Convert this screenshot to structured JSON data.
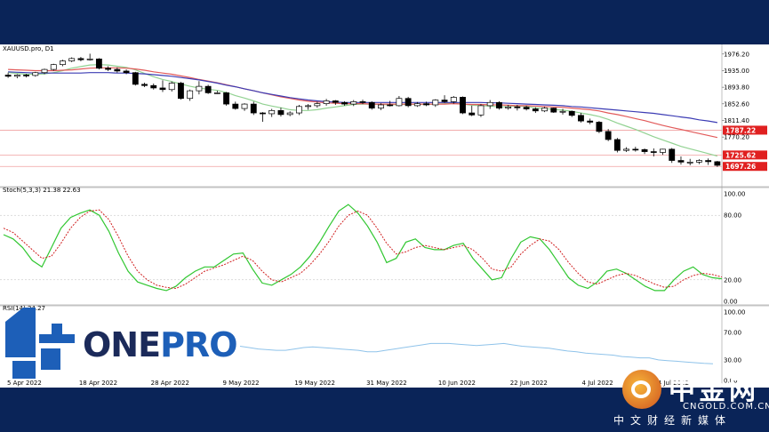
{
  "instrument_label": "XAUUSD.pro, D1",
  "stoch_label": "Stoch(5,3,3) 21.38 22.63",
  "rsi_label": "RSI(14) 24.27",
  "logo": {
    "name_part1": "ONE",
    "name_part2": "PRO"
  },
  "watermark": {
    "brand": "中金网",
    "url": "CNGOLD.COM.CN",
    "slogan": "中文财经新媒体"
  },
  "colors": {
    "up_candle": "#ffffff",
    "down_candle": "#000000",
    "ma_fast": "#92d292",
    "ma_mid": "#e25a5a",
    "ma_slow": "#3c3cb4",
    "stoch_main": "#31c731",
    "stoch_signal": "#d02020",
    "rsi_line": "#8fc3ea",
    "level_line": "#f1a0a0",
    "level_badge": "#e02020",
    "onepro_blue": "#1d5fb8",
    "frame": "#0a2458"
  },
  "chart_data": [
    {
      "type": "candlestick",
      "panel": "main",
      "title": "XAUUSD.pro, D1",
      "ylim": [
        1647,
        2000
      ],
      "y_ticks": [
        "1976.20",
        "1935.00",
        "1893.80",
        "1852.60",
        "1811.40",
        "1770.20"
      ],
      "level_labels": [
        "1787.22",
        "1725.62",
        "1697.26"
      ],
      "x_tick_labels": [
        "5 Apr 2022",
        "18 Apr 2022",
        "28 Apr 2022",
        "9 May 2022",
        "19 May 2022",
        "31 May 2022",
        "10 Jun 2022",
        "22 Jun 2022",
        "4 Jul 2022",
        "14 Jul 2022"
      ],
      "candles": [
        {
          "o": 1924,
          "h": 1930,
          "l": 1917,
          "c": 1921
        },
        {
          "o": 1921,
          "h": 1926,
          "l": 1916,
          "c": 1924
        },
        {
          "o": 1924,
          "h": 1927,
          "l": 1918,
          "c": 1923
        },
        {
          "o": 1923,
          "h": 1932,
          "l": 1920,
          "c": 1930
        },
        {
          "o": 1930,
          "h": 1940,
          "l": 1926,
          "c": 1938
        },
        {
          "o": 1938,
          "h": 1952,
          "l": 1935,
          "c": 1950
        },
        {
          "o": 1950,
          "h": 1962,
          "l": 1946,
          "c": 1959
        },
        {
          "o": 1959,
          "h": 1968,
          "l": 1956,
          "c": 1965
        },
        {
          "o": 1965,
          "h": 1969,
          "l": 1958,
          "c": 1962
        },
        {
          "o": 1962,
          "h": 1977,
          "l": 1960,
          "c": 1964
        },
        {
          "o": 1964,
          "h": 1966,
          "l": 1938,
          "c": 1941
        },
        {
          "o": 1941,
          "h": 1946,
          "l": 1934,
          "c": 1938
        },
        {
          "o": 1938,
          "h": 1943,
          "l": 1930,
          "c": 1934
        },
        {
          "o": 1934,
          "h": 1938,
          "l": 1926,
          "c": 1930
        },
        {
          "o": 1930,
          "h": 1932,
          "l": 1898,
          "c": 1901
        },
        {
          "o": 1901,
          "h": 1905,
          "l": 1894,
          "c": 1898
        },
        {
          "o": 1898,
          "h": 1903,
          "l": 1888,
          "c": 1892
        },
        {
          "o": 1892,
          "h": 1911,
          "l": 1882,
          "c": 1888
        },
        {
          "o": 1888,
          "h": 1908,
          "l": 1883,
          "c": 1904
        },
        {
          "o": 1904,
          "h": 1907,
          "l": 1863,
          "c": 1866
        },
        {
          "o": 1866,
          "h": 1888,
          "l": 1860,
          "c": 1885
        },
        {
          "o": 1885,
          "h": 1909,
          "l": 1876,
          "c": 1896
        },
        {
          "o": 1896,
          "h": 1900,
          "l": 1877,
          "c": 1880
        },
        {
          "o": 1880,
          "h": 1885,
          "l": 1877,
          "c": 1880
        },
        {
          "o": 1880,
          "h": 1882,
          "l": 1848,
          "c": 1852
        },
        {
          "o": 1852,
          "h": 1858,
          "l": 1838,
          "c": 1841
        },
        {
          "o": 1841,
          "h": 1854,
          "l": 1835,
          "c": 1852
        },
        {
          "o": 1852,
          "h": 1858,
          "l": 1825,
          "c": 1830
        },
        {
          "o": 1830,
          "h": 1832,
          "l": 1808,
          "c": 1828
        },
        {
          "o": 1828,
          "h": 1840,
          "l": 1820,
          "c": 1836
        },
        {
          "o": 1836,
          "h": 1843,
          "l": 1821,
          "c": 1826
        },
        {
          "o": 1826,
          "h": 1834,
          "l": 1822,
          "c": 1830
        },
        {
          "o": 1830,
          "h": 1850,
          "l": 1825,
          "c": 1846
        },
        {
          "o": 1846,
          "h": 1852,
          "l": 1838,
          "c": 1848
        },
        {
          "o": 1848,
          "h": 1858,
          "l": 1843,
          "c": 1853
        },
        {
          "o": 1853,
          "h": 1865,
          "l": 1848,
          "c": 1860
        },
        {
          "o": 1860,
          "h": 1862,
          "l": 1850,
          "c": 1856
        },
        {
          "o": 1856,
          "h": 1859,
          "l": 1848,
          "c": 1852
        },
        {
          "o": 1852,
          "h": 1862,
          "l": 1847,
          "c": 1858
        },
        {
          "o": 1858,
          "h": 1863,
          "l": 1852,
          "c": 1856
        },
        {
          "o": 1856,
          "h": 1859,
          "l": 1838,
          "c": 1842
        },
        {
          "o": 1842,
          "h": 1854,
          "l": 1837,
          "c": 1850
        },
        {
          "o": 1850,
          "h": 1860,
          "l": 1846,
          "c": 1848
        },
        {
          "o": 1848,
          "h": 1872,
          "l": 1846,
          "c": 1866
        },
        {
          "o": 1866,
          "h": 1870,
          "l": 1844,
          "c": 1848
        },
        {
          "o": 1848,
          "h": 1857,
          "l": 1845,
          "c": 1853
        },
        {
          "o": 1853,
          "h": 1858,
          "l": 1847,
          "c": 1850
        },
        {
          "o": 1850,
          "h": 1864,
          "l": 1845,
          "c": 1862
        },
        {
          "o": 1862,
          "h": 1874,
          "l": 1855,
          "c": 1858
        },
        {
          "o": 1858,
          "h": 1872,
          "l": 1853,
          "c": 1869
        },
        {
          "o": 1869,
          "h": 1871,
          "l": 1827,
          "c": 1830
        },
        {
          "o": 1830,
          "h": 1848,
          "l": 1822,
          "c": 1825
        },
        {
          "o": 1825,
          "h": 1852,
          "l": 1820,
          "c": 1848
        },
        {
          "o": 1848,
          "h": 1862,
          "l": 1840,
          "c": 1856
        },
        {
          "o": 1856,
          "h": 1859,
          "l": 1838,
          "c": 1842
        },
        {
          "o": 1842,
          "h": 1850,
          "l": 1838,
          "c": 1845
        },
        {
          "o": 1845,
          "h": 1850,
          "l": 1836,
          "c": 1844
        },
        {
          "o": 1844,
          "h": 1848,
          "l": 1836,
          "c": 1840
        },
        {
          "o": 1840,
          "h": 1844,
          "l": 1830,
          "c": 1835
        },
        {
          "o": 1835,
          "h": 1845,
          "l": 1832,
          "c": 1842
        },
        {
          "o": 1842,
          "h": 1843,
          "l": 1830,
          "c": 1832
        },
        {
          "o": 1832,
          "h": 1840,
          "l": 1826,
          "c": 1834
        },
        {
          "o": 1834,
          "h": 1836,
          "l": 1820,
          "c": 1824
        },
        {
          "o": 1824,
          "h": 1830,
          "l": 1806,
          "c": 1810
        },
        {
          "o": 1810,
          "h": 1816,
          "l": 1802,
          "c": 1807
        },
        {
          "o": 1807,
          "h": 1810,
          "l": 1780,
          "c": 1784
        },
        {
          "o": 1784,
          "h": 1790,
          "l": 1760,
          "c": 1764
        },
        {
          "o": 1764,
          "h": 1768,
          "l": 1732,
          "c": 1737
        },
        {
          "o": 1737,
          "h": 1745,
          "l": 1733,
          "c": 1740
        },
        {
          "o": 1740,
          "h": 1746,
          "l": 1734,
          "c": 1739
        },
        {
          "o": 1739,
          "h": 1742,
          "l": 1728,
          "c": 1734
        },
        {
          "o": 1734,
          "h": 1742,
          "l": 1722,
          "c": 1732
        },
        {
          "o": 1732,
          "h": 1741,
          "l": 1726,
          "c": 1740
        },
        {
          "o": 1740,
          "h": 1743,
          "l": 1706,
          "c": 1712
        },
        {
          "o": 1712,
          "h": 1722,
          "l": 1702,
          "c": 1708
        },
        {
          "o": 1708,
          "h": 1716,
          "l": 1700,
          "c": 1708
        },
        {
          "o": 1708,
          "h": 1715,
          "l": 1703,
          "c": 1712
        },
        {
          "o": 1712,
          "h": 1717,
          "l": 1701,
          "c": 1709
        },
        {
          "o": 1709,
          "h": 1711,
          "l": 1696,
          "c": 1700
        }
      ],
      "ma_fast": [
        1930,
        1928,
        1926,
        1926,
        1927,
        1930,
        1935,
        1941,
        1945,
        1949,
        1950,
        1949,
        1946,
        1943,
        1937,
        1928,
        1920,
        1913,
        1908,
        1902,
        1896,
        1892,
        1889,
        1886,
        1881,
        1873,
        1867,
        1860,
        1852,
        1847,
        1843,
        1838,
        1836,
        1836,
        1838,
        1842,
        1845,
        1848,
        1851,
        1852,
        1852,
        1851,
        1850,
        1851,
        1851,
        1851,
        1851,
        1852,
        1853,
        1855,
        1852,
        1849,
        1848,
        1847,
        1845,
        1846,
        1847,
        1846,
        1843,
        1841,
        1839,
        1837,
        1834,
        1830,
        1826,
        1821,
        1814,
        1805,
        1797,
        1789,
        1780,
        1771,
        1763,
        1755,
        1747,
        1741,
        1735,
        1729,
        1723
      ],
      "ma_mid": [
        1938,
        1937,
        1936,
        1935,
        1935,
        1935,
        1936,
        1937,
        1939,
        1941,
        1942,
        1942,
        1942,
        1941,
        1939,
        1936,
        1932,
        1929,
        1926,
        1922,
        1918,
        1913,
        1909,
        1905,
        1900,
        1895,
        1890,
        1885,
        1880,
        1875,
        1870,
        1866,
        1862,
        1859,
        1857,
        1855,
        1854,
        1853,
        1853,
        1853,
        1852,
        1852,
        1852,
        1852,
        1852,
        1852,
        1852,
        1852,
        1852,
        1853,
        1852,
        1851,
        1851,
        1850,
        1850,
        1849,
        1848,
        1848,
        1847,
        1846,
        1845,
        1844,
        1842,
        1840,
        1838,
        1835,
        1830,
        1826,
        1821,
        1816,
        1811,
        1805,
        1799,
        1794,
        1789,
        1784,
        1779,
        1774,
        1769
      ],
      "ma_slow": [
        1932,
        1931,
        1930,
        1929,
        1929,
        1929,
        1929,
        1929,
        1929,
        1930,
        1930,
        1930,
        1929,
        1929,
        1928,
        1927,
        1925,
        1923,
        1921,
        1918,
        1915,
        1912,
        1908,
        1904,
        1899,
        1895,
        1890,
        1885,
        1880,
        1876,
        1872,
        1868,
        1865,
        1862,
        1860,
        1858,
        1857,
        1856,
        1856,
        1856,
        1856,
        1856,
        1856,
        1856,
        1856,
        1856,
        1856,
        1856,
        1856,
        1856,
        1856,
        1856,
        1856,
        1855,
        1855,
        1854,
        1853,
        1852,
        1851,
        1850,
        1849,
        1848,
        1846,
        1845,
        1843,
        1841,
        1839,
        1837,
        1835,
        1833,
        1831,
        1829,
        1826,
        1823,
        1820,
        1817,
        1813,
        1810,
        1806
      ]
    },
    {
      "type": "line",
      "panel": "stochastic",
      "title": "Stoch(5,3,3) 21.38 22.63",
      "ylim": [
        0,
        100
      ],
      "y_ticks": [
        "100.00",
        "80.00",
        "20.00",
        "0.00"
      ],
      "series": [
        {
          "values": [
            62,
            58,
            50,
            38,
            32,
            50,
            68,
            78,
            82,
            85,
            80,
            65,
            45,
            28,
            18,
            15,
            12,
            10,
            14,
            22,
            28,
            32,
            32,
            38,
            44,
            45,
            30,
            17,
            15,
            20,
            25,
            32,
            42,
            55,
            70,
            84,
            90,
            82,
            70,
            55,
            36,
            40,
            55,
            58,
            50,
            48,
            48,
            52,
            54,
            40,
            30,
            20,
            22,
            40,
            55,
            60,
            58,
            48,
            35,
            22,
            15,
            12,
            18,
            28,
            30,
            26,
            20,
            14,
            10,
            10,
            20,
            28,
            32,
            25,
            22,
            21
          ]
        },
        {
          "values": [
            68,
            64,
            56,
            48,
            40,
            42,
            54,
            68,
            78,
            84,
            85,
            76,
            60,
            42,
            28,
            20,
            15,
            13,
            12,
            16,
            22,
            28,
            31,
            34,
            38,
            42,
            38,
            28,
            20,
            18,
            22,
            26,
            34,
            44,
            56,
            70,
            80,
            84,
            80,
            68,
            54,
            44,
            46,
            50,
            52,
            50,
            48,
            50,
            52,
            48,
            40,
            30,
            28,
            32,
            44,
            52,
            58,
            56,
            48,
            36,
            26,
            18,
            16,
            20,
            24,
            26,
            24,
            20,
            16,
            13,
            14,
            20,
            24,
            26,
            25,
            22.6
          ]
        }
      ]
    },
    {
      "type": "line",
      "panel": "rsi",
      "title": "RSI(14) 24.27",
      "ylim": [
        0,
        100
      ],
      "y_ticks": [
        "100.00",
        "70.00",
        "30.00",
        "0.00"
      ],
      "series": [
        {
          "values": [
            50,
            48,
            46,
            45,
            44,
            44,
            46,
            48,
            49,
            48,
            47,
            46,
            45,
            44,
            42,
            42,
            44,
            46,
            48,
            50,
            52,
            54,
            54,
            54,
            53,
            52,
            51,
            52,
            53,
            54,
            52,
            50,
            49,
            48,
            47,
            45,
            43,
            42,
            40,
            39,
            38,
            37,
            35,
            34,
            33,
            33,
            30,
            29,
            28,
            27,
            26,
            25,
            24.3
          ]
        }
      ]
    }
  ]
}
